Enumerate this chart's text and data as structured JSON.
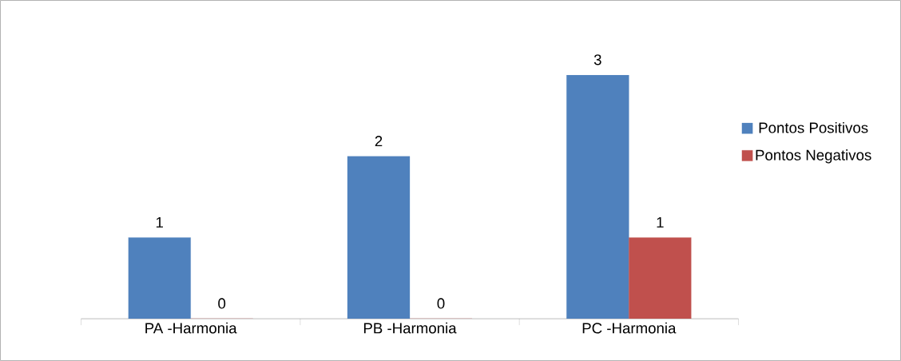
{
  "chart_data": {
    "type": "bar",
    "categories": [
      "PA -Harmonia",
      "PB -Harmonia",
      "PC -Harmonia"
    ],
    "series": [
      {
        "name": "Pontos Positivos",
        "color": "#4f81bd",
        "values": [
          1,
          2,
          3
        ]
      },
      {
        "name": "Pontos Negativos",
        "color": "#c0504d",
        "values": [
          0,
          0,
          1
        ]
      }
    ],
    "data_labels": true,
    "legend": "right"
  }
}
